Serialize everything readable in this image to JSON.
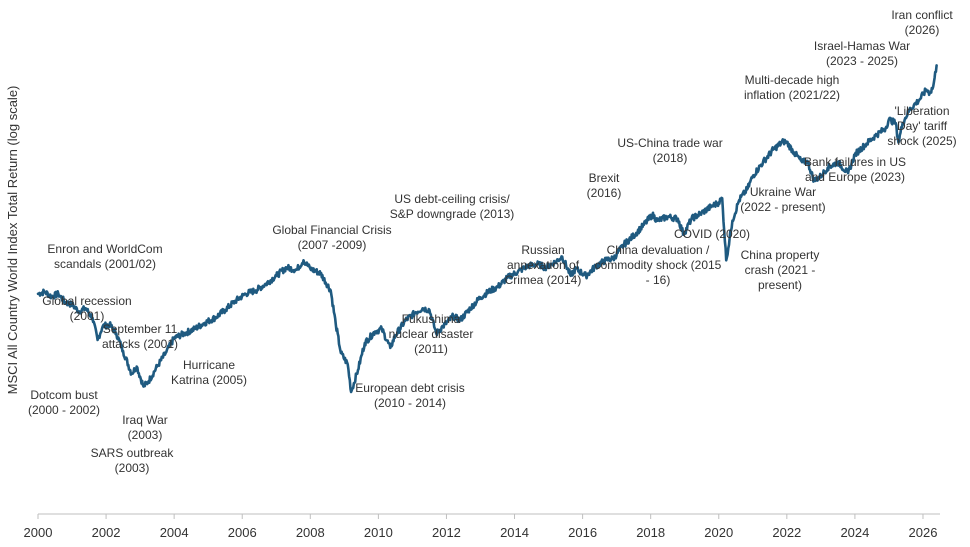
{
  "chart_data": {
    "type": "line",
    "title": "",
    "ylabel": "MSCI All Country World Index Total Return (log scale)",
    "xlabel": "",
    "y_scale": "log",
    "y_ticks_shown": false,
    "grid": false,
    "xlim": [
      2000,
      2026.5
    ],
    "ylim": [
      80,
      1300
    ],
    "x_ticks": [
      "2000",
      "2002",
      "2004",
      "2006",
      "2008",
      "2010",
      "2012",
      "2014",
      "2016",
      "2018",
      "2020",
      "2022",
      "2024",
      "2026"
    ],
    "line_color": "#1f5a80",
    "series": [
      {
        "x": [
          2000.0,
          2000.2,
          2000.4,
          2000.6,
          2000.8,
          2001.0,
          2001.2,
          2001.4,
          2001.6,
          2001.75,
          2001.9,
          2002.1,
          2002.3,
          2002.5,
          2002.75,
          2002.9,
          2003.1,
          2003.25,
          2003.5,
          2003.75,
          2004.0,
          2004.3,
          2004.6,
          2004.9,
          2005.2,
          2005.5,
          2005.8,
          2006.1,
          2006.4,
          2006.7,
          2007.0,
          2007.3,
          2007.6,
          2007.8,
          2008.0,
          2008.3,
          2008.6,
          2008.75,
          2008.9,
          2009.1,
          2009.2,
          2009.4,
          2009.6,
          2009.9,
          2010.1,
          2010.35,
          2010.5,
          2010.8,
          2011.1,
          2011.3,
          2011.5,
          2011.7,
          2011.9,
          2012.2,
          2012.4,
          2012.7,
          2013.0,
          2013.3,
          2013.5,
          2013.8,
          2014.1,
          2014.4,
          2014.7,
          2014.9,
          2015.2,
          2015.4,
          2015.65,
          2015.8,
          2016.1,
          2016.4,
          2016.7,
          2016.9,
          2017.2,
          2017.5,
          2017.8,
          2018.05,
          2018.2,
          2018.5,
          2018.8,
          2018.97,
          2019.2,
          2019.5,
          2019.8,
          2020.0,
          2020.1,
          2020.22,
          2020.4,
          2020.6,
          2020.85,
          2021.0,
          2021.3,
          2021.6,
          2021.9,
          2022.0,
          2022.2,
          2022.45,
          2022.6,
          2022.8,
          2023.0,
          2023.2,
          2023.5,
          2023.8,
          2024.0,
          2024.3,
          2024.6,
          2024.9,
          2025.0,
          2025.2,
          2025.28,
          2025.4,
          2025.6,
          2025.9,
          2026.1,
          2026.2,
          2026.3,
          2026.4
        ],
        "y": [
          200,
          203,
          196,
          200,
          188,
          185,
          176,
          180,
          168,
          143,
          158,
          160,
          150,
          132,
          112,
          118,
          102,
          106,
          118,
          130,
          145,
          150,
          155,
          162,
          168,
          178,
          190,
          200,
          205,
          215,
          228,
          242,
          238,
          255,
          240,
          232,
          205,
          160,
          130,
          120,
          98,
          115,
          140,
          152,
          155,
          135,
          148,
          165,
          175,
          180,
          178,
          150,
          158,
          170,
          165,
          180,
          195,
          205,
          210,
          225,
          235,
          245,
          248,
          242,
          252,
          262,
          228,
          240,
          228,
          245,
          256,
          258,
          285,
          305,
          330,
          355,
          340,
          350,
          345,
          308,
          345,
          360,
          378,
          388,
          400,
          255,
          340,
          395,
          430,
          470,
          520,
          570,
          605,
          600,
          560,
          520,
          525,
          455,
          470,
          500,
          520,
          480,
          550,
          590,
          630,
          665,
          710,
          690,
          600,
          690,
          760,
          820,
          880,
          860,
          900,
          1050
        ]
      }
    ],
    "annotations": [
      {
        "text": "Iran conflict",
        "text2": "(2026)"
      },
      {
        "text": "Israel-Hamas War",
        "text2": "(2023 - 2025)"
      },
      {
        "text": "Multi-decade high",
        "text2": "inflation (2021/22)"
      },
      {
        "text": "'Liberation",
        "text2": "Day' tariff",
        "text3": "shock (2025)"
      },
      {
        "text": "US-China trade war",
        "text2": "(2018)"
      },
      {
        "text": "Bank failures in US",
        "text2": "and Europe (2023)"
      },
      {
        "text": "Brexit",
        "text2": "(2016)"
      },
      {
        "text": "Ukraine War",
        "text2": "(2022 - present)"
      },
      {
        "text": "US debt-ceiling crisis/",
        "text2": "S&P downgrade (2013)"
      },
      {
        "text": "Global Financial Crisis",
        "text2": "(2007 -2009)"
      },
      {
        "text": "COVID (2020)"
      },
      {
        "text": "Russian",
        "text2": "annexation of",
        "text3": "Crimea (2014)"
      },
      {
        "text": "China devaluation /",
        "text2": "commodity shock (2015",
        "text3": "- 16)"
      },
      {
        "text": "China property",
        "text2": "crash (2021 -",
        "text3": "present)"
      },
      {
        "text": "Enron and WorldCom",
        "text2": "scandals (2001/02)"
      },
      {
        "text": "Global recession",
        "text2": "(2001)"
      },
      {
        "text": "September 11",
        "text2": "attacks (2001)"
      },
      {
        "text": "Fukushima",
        "text2": "nuclear disaster",
        "text3": "(2011)"
      },
      {
        "text": "Hurricane",
        "text2": "Katrina (2005)"
      },
      {
        "text": "Dotcom bust",
        "text2": "(2000 - 2002)"
      },
      {
        "text": "European debt crisis",
        "text2": "(2010 - 2014)"
      },
      {
        "text": "Iraq War",
        "text2": "(2003)"
      },
      {
        "text": "SARS outbreak",
        "text2": "(2003)"
      }
    ]
  }
}
